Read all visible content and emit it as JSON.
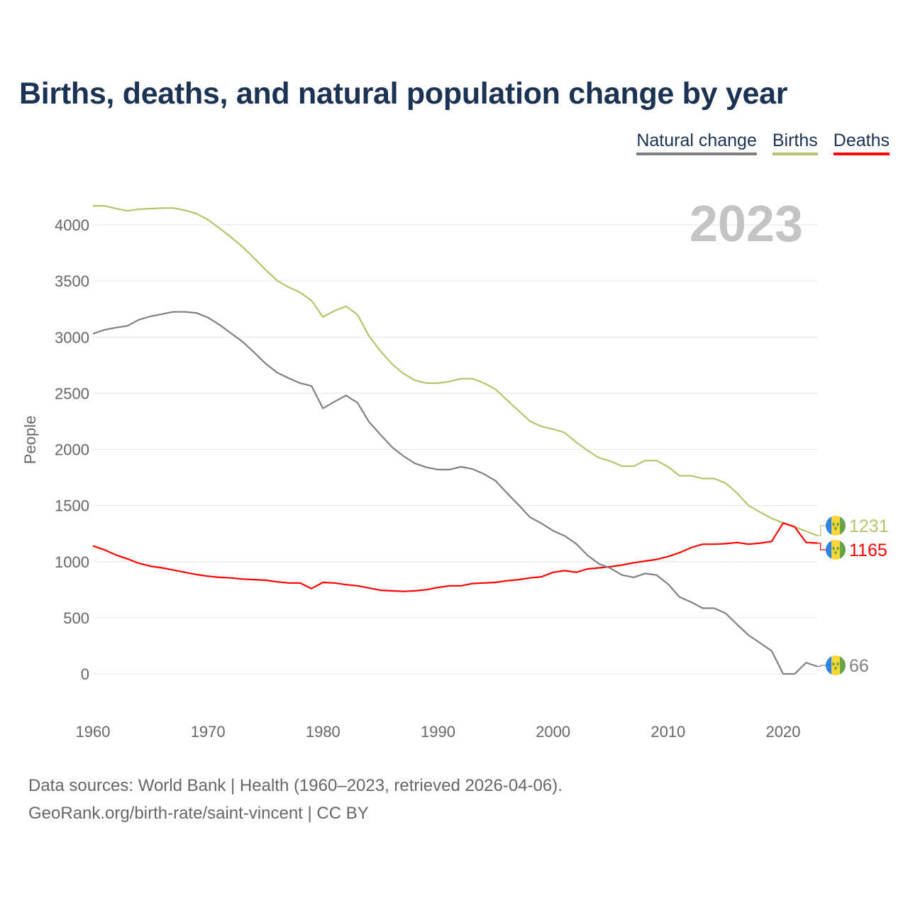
{
  "title": "Births, deaths, and natural population change by year",
  "legend": [
    {
      "label": "Natural change",
      "color": "#808080"
    },
    {
      "label": "Births",
      "color": "#b5c46a"
    },
    {
      "label": "Deaths",
      "color": "#ff0000"
    }
  ],
  "source_line1": "Data sources: World Bank | Health (1960–2023, retrieved 2026-04-06).",
  "source_line2": "GeoRank.org/birth-rate/saint-vincent | CC BY",
  "chart_data": {
    "type": "line",
    "title": "Births, deaths, and natural population change by year",
    "xlabel": "",
    "ylabel": "People",
    "year_watermark": "2023",
    "xlim": [
      1960,
      2023
    ],
    "ylim": [
      -250,
      4300
    ],
    "x_ticks": [
      1960,
      1970,
      1980,
      1990,
      2000,
      2010,
      2020
    ],
    "y_ticks": [
      0,
      500,
      1000,
      1500,
      2000,
      2500,
      3000,
      3500,
      4000
    ],
    "grid": true,
    "legend_position": "top-right",
    "x_start": 1960,
    "series": [
      {
        "name": "Births",
        "color": "#b5c46a",
        "end_label": "1231",
        "values": [
          4170,
          4170,
          4145,
          4125,
          4140,
          4145,
          4150,
          4150,
          4130,
          4100,
          4045,
          3970,
          3890,
          3805,
          3705,
          3600,
          3505,
          3445,
          3400,
          3325,
          3180,
          3235,
          3275,
          3200,
          3010,
          2875,
          2760,
          2675,
          2615,
          2590,
          2590,
          2605,
          2630,
          2630,
          2590,
          2535,
          2440,
          2345,
          2250,
          2205,
          2180,
          2150,
          2065,
          1990,
          1925,
          1895,
          1850,
          1850,
          1900,
          1900,
          1845,
          1765,
          1765,
          1740,
          1740,
          1700,
          1610,
          1500,
          1440,
          1385,
          1345,
          1310,
          1270,
          1231
        ]
      },
      {
        "name": "Deaths",
        "color": "#ff0000",
        "end_label": "1165",
        "values": [
          1140,
          1105,
          1060,
          1025,
          985,
          960,
          945,
          925,
          905,
          885,
          870,
          860,
          855,
          845,
          840,
          835,
          820,
          810,
          810,
          760,
          815,
          810,
          795,
          785,
          765,
          745,
          740,
          735,
          740,
          750,
          770,
          785,
          785,
          805,
          810,
          815,
          830,
          840,
          855,
          865,
          905,
          920,
          905,
          935,
          945,
          955,
          970,
          990,
          1005,
          1020,
          1045,
          1080,
          1125,
          1155,
          1155,
          1160,
          1170,
          1155,
          1165,
          1180,
          1345,
          1310,
          1170,
          1165
        ]
      },
      {
        "name": "Natural change",
        "color": "#808080",
        "end_label": "66",
        "values": [
          3030,
          3065,
          3085,
          3100,
          3155,
          3185,
          3205,
          3225,
          3225,
          3215,
          3175,
          3110,
          3035,
          2960,
          2865,
          2765,
          2685,
          2635,
          2590,
          2565,
          2365,
          2425,
          2480,
          2415,
          2245,
          2130,
          2020,
          1940,
          1875,
          1840,
          1820,
          1820,
          1845,
          1825,
          1780,
          1720,
          1610,
          1505,
          1395,
          1340,
          1275,
          1230,
          1160,
          1055,
          980,
          940,
          880,
          860,
          895,
          880,
          800,
          685,
          640,
          585,
          585,
          540,
          440,
          345,
          275,
          205,
          0,
          0,
          100,
          66
        ]
      }
    ]
  }
}
